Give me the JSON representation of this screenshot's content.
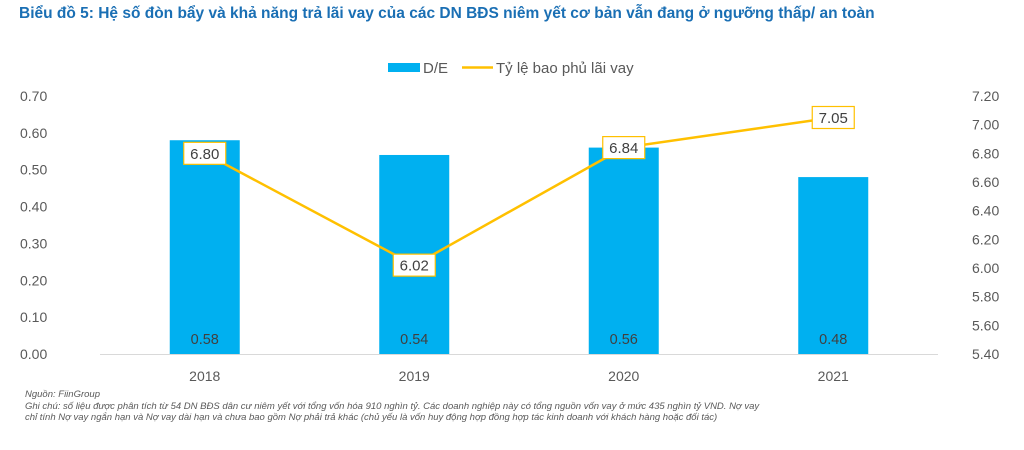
{
  "title": "Biểu đồ 5: Hệ số đòn bẩy và khả năng trả lãi vay của các DN BĐS niêm yết cơ bản vẫn đang ở ngưỡng thấp/ an toàn",
  "notes": {
    "source": "Nguồn: FiinGroup",
    "line1": "Ghi chú: số liệu được phân tích từ 54 DN BĐS dân cư niêm yết với tổng vốn hóa 910 nghìn tỷ. Các doanh nghiệp này có tổng nguồn vốn vay ở mức 435 nghìn tỷ VND. Nợ vay",
    "line2": "chỉ tính Nợ vay ngắn hạn và Nợ vay dài hạn và chưa bao gồm Nợ phải trả khác (chủ yếu là vốn huy động hợp đồng hợp tác kinh doanh với khách hàng hoặc đối tác)"
  },
  "colors": {
    "bar": "#00B0F0",
    "line": "#FFC000",
    "title": "#1a6fb4"
  },
  "chart_data": {
    "type": "bar+line",
    "title": "Biểu đồ 5: Hệ số đòn bẩy và khả năng trả lãi vay của các DN BĐS niêm yết cơ bản vẫn đang ở ngưỡng thấp/ an toàn",
    "categories": [
      "2018",
      "2019",
      "2020",
      "2021"
    ],
    "series": [
      {
        "name": "D/E",
        "type": "bar",
        "axis": "left",
        "values": [
          0.58,
          0.54,
          0.56,
          0.48
        ],
        "labels": [
          "0.58",
          "0.54",
          "0.56",
          "0.48"
        ]
      },
      {
        "name": "Tỷ lệ bao phủ lãi vay",
        "type": "line",
        "axis": "right",
        "values": [
          6.8,
          6.02,
          6.84,
          7.05
        ],
        "labels": [
          "6.80",
          "6.02",
          "6.84",
          "7.05"
        ]
      }
    ],
    "y_left": {
      "range": [
        0.0,
        0.7
      ],
      "ticks": [
        "0.00",
        "0.10",
        "0.20",
        "0.30",
        "0.40",
        "0.50",
        "0.60",
        "0.70"
      ]
    },
    "y_right": {
      "range": [
        5.4,
        7.2
      ],
      "ticks": [
        "5.40",
        "5.60",
        "5.80",
        "6.00",
        "6.20",
        "6.40",
        "6.60",
        "6.80",
        "7.00",
        "7.20"
      ]
    },
    "xlabel": "",
    "ylabel": "",
    "grid": false,
    "legend": "top-center"
  }
}
